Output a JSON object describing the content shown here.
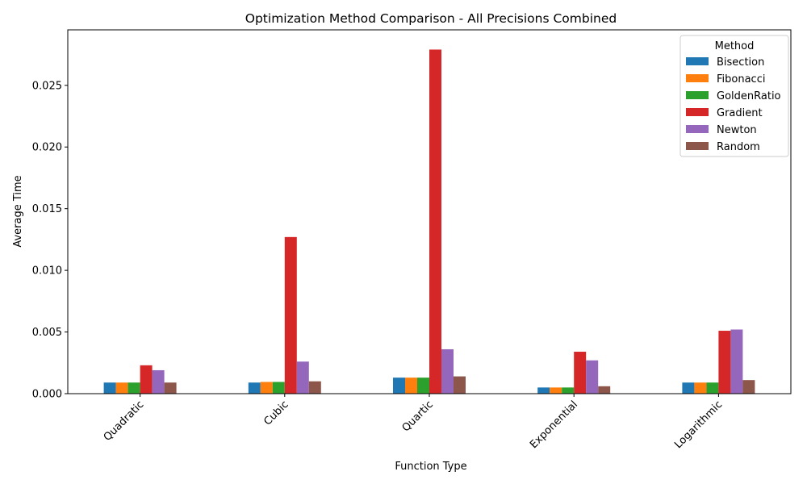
{
  "chart_data": {
    "type": "bar",
    "title": "Optimization Method Comparison - All Precisions Combined",
    "xlabel": "Function Type",
    "ylabel": "Average Time",
    "categories": [
      "Quadratic",
      "Cubic",
      "Quartic",
      "Exponential",
      "Logarithmic"
    ],
    "ylim": [
      0,
      0.0295
    ],
    "yticks": [
      "0.000",
      "0.005",
      "0.010",
      "0.015",
      "0.020",
      "0.025"
    ],
    "ytick_values": [
      0,
      0.005,
      0.01,
      0.015,
      0.02,
      0.025
    ],
    "grid": false,
    "legend": {
      "title": "Method",
      "placement": "top-right"
    },
    "series": [
      {
        "name": "Bisection",
        "color": "#1f77b4",
        "values": [
          0.0009,
          0.0009,
          0.0013,
          0.0005,
          0.0009
        ]
      },
      {
        "name": "Fibonacci",
        "color": "#ff7f0e",
        "values": [
          0.0009,
          0.00095,
          0.0013,
          0.0005,
          0.0009
        ]
      },
      {
        "name": "GoldenRatio",
        "color": "#2ca02c",
        "values": [
          0.0009,
          0.00095,
          0.0013,
          0.0005,
          0.0009
        ]
      },
      {
        "name": "Gradient",
        "color": "#d62728",
        "values": [
          0.0023,
          0.0127,
          0.0279,
          0.0034,
          0.0051
        ]
      },
      {
        "name": "Newton",
        "color": "#9467bd",
        "values": [
          0.0019,
          0.0026,
          0.0036,
          0.0027,
          0.0052
        ]
      },
      {
        "name": "Random",
        "color": "#8c564b",
        "values": [
          0.0009,
          0.001,
          0.0014,
          0.0006,
          0.0011
        ]
      }
    ]
  }
}
